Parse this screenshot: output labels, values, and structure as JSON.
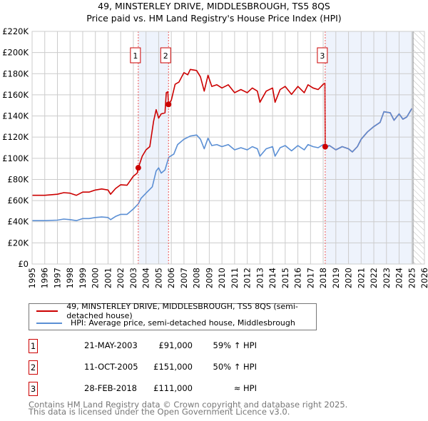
{
  "title": "49, MINSTERLEY DRIVE, MIDDLESBROUGH, TS5 8QS",
  "subtitle": "Price paid vs. HM Land Registry's House Price Index (HPI)",
  "chart_data": {
    "type": "line",
    "title": "49, MINSTERLEY DRIVE, MIDDLESBROUGH, TS5 8QS",
    "subtitle": "Price paid vs. HM Land Registry's House Price Index (HPI)",
    "xlim": [
      1995,
      2026
    ],
    "ylim": [
      0,
      220000
    ],
    "x_ticks": [
      "1995",
      "1996",
      "1997",
      "1998",
      "1999",
      "2000",
      "2001",
      "2002",
      "2003",
      "2004",
      "2005",
      "2006",
      "2007",
      "2008",
      "2009",
      "2010",
      "2011",
      "2012",
      "2013",
      "2014",
      "2015",
      "2016",
      "2017",
      "2018",
      "2019",
      "2020",
      "2021",
      "2022",
      "2023",
      "2024",
      "2025",
      "2026"
    ],
    "y_ticks": [
      {
        "v": 0,
        "l": "£0"
      },
      {
        "v": 20000,
        "l": "£20K"
      },
      {
        "v": 40000,
        "l": "£40K"
      },
      {
        "v": 60000,
        "l": "£60K"
      },
      {
        "v": 80000,
        "l": "£80K"
      },
      {
        "v": 100000,
        "l": "£100K"
      },
      {
        "v": 120000,
        "l": "£120K"
      },
      {
        "v": 140000,
        "l": "£140K"
      },
      {
        "v": 160000,
        "l": "£160K"
      },
      {
        "v": 180000,
        "l": "£180K"
      },
      {
        "v": 200000,
        "l": "£200K"
      },
      {
        "v": 220000,
        "l": "£220K"
      }
    ],
    "grid": true,
    "series": [
      {
        "name": "49, MINSTERLEY DRIVE, MIDDLESBROUGH, TS5 8QS (semi-detached house)",
        "color": "#cc0000",
        "points": [
          [
            1995,
            65000
          ],
          [
            1996,
            65000
          ],
          [
            1997,
            66000
          ],
          [
            1997.5,
            67500
          ],
          [
            1998,
            67000
          ],
          [
            1998.5,
            65000
          ],
          [
            1999,
            68000
          ],
          [
            1999.5,
            68000
          ],
          [
            2000,
            70000
          ],
          [
            2000.5,
            71000
          ],
          [
            2001,
            70000
          ],
          [
            2001.2,
            66000
          ],
          [
            2001.6,
            71500
          ],
          [
            2002,
            75000
          ],
          [
            2002.5,
            74500
          ],
          [
            2003,
            83000
          ],
          [
            2003.3,
            86000
          ],
          [
            2003.39,
            91000
          ],
          [
            2003.7,
            102000
          ],
          [
            2004,
            108000
          ],
          [
            2004.3,
            111000
          ],
          [
            2004.6,
            135000
          ],
          [
            2004.8,
            146000
          ],
          [
            2005,
            138000
          ],
          [
            2005.2,
            142000
          ],
          [
            2005.5,
            143000
          ],
          [
            2005.6,
            162000
          ],
          [
            2005.72,
            163000
          ],
          [
            2005.78,
            151000
          ],
          [
            2006,
            155000
          ],
          [
            2006.3,
            170000
          ],
          [
            2006.6,
            172000
          ],
          [
            2007,
            181000
          ],
          [
            2007.3,
            179000
          ],
          [
            2007.5,
            184000
          ],
          [
            2008,
            183000
          ],
          [
            2008.3,
            177000
          ],
          [
            2008.6,
            163500
          ],
          [
            2008.9,
            178500
          ],
          [
            2009.2,
            168000
          ],
          [
            2009.6,
            169500
          ],
          [
            2010,
            166500
          ],
          [
            2010.5,
            169500
          ],
          [
            2011,
            162000
          ],
          [
            2011.5,
            165000
          ],
          [
            2012,
            162000
          ],
          [
            2012.4,
            166500
          ],
          [
            2012.8,
            163500
          ],
          [
            2013,
            153000
          ],
          [
            2013.5,
            163500
          ],
          [
            2014,
            166500
          ],
          [
            2014.2,
            153000
          ],
          [
            2014.6,
            165000
          ],
          [
            2015,
            168000
          ],
          [
            2015.5,
            160500
          ],
          [
            2016,
            168000
          ],
          [
            2016.5,
            162000
          ],
          [
            2016.8,
            169500
          ],
          [
            2017.2,
            166500
          ],
          [
            2017.6,
            165000
          ],
          [
            2018,
            170000
          ],
          [
            2018.14,
            171000
          ],
          [
            2018.16,
            111000
          ],
          [
            2018.5,
            112000
          ],
          [
            2019,
            108000
          ],
          [
            2019.5,
            111000
          ],
          [
            2020,
            109000
          ],
          [
            2020.3,
            106000
          ],
          [
            2020.7,
            111000
          ],
          [
            2021,
            118000
          ],
          [
            2021.5,
            125000
          ],
          [
            2022,
            130000
          ],
          [
            2022.5,
            134000
          ],
          [
            2022.8,
            144000
          ],
          [
            2023.3,
            143000
          ],
          [
            2023.6,
            136000
          ],
          [
            2024,
            142000
          ],
          [
            2024.3,
            137000
          ],
          [
            2024.6,
            139000
          ],
          [
            2025,
            147000
          ]
        ]
      },
      {
        "name": "HPI: Average price, semi-detached house, Middlesbrough",
        "color": "#5b8fd4",
        "points": [
          [
            1995,
            41000
          ],
          [
            1996,
            41000
          ],
          [
            1997,
            41500
          ],
          [
            1997.5,
            42500
          ],
          [
            1998,
            42000
          ],
          [
            1998.5,
            41000
          ],
          [
            1999,
            43000
          ],
          [
            1999.5,
            43000
          ],
          [
            2000,
            44000
          ],
          [
            2000.5,
            44500
          ],
          [
            2001,
            44000
          ],
          [
            2001.2,
            42000
          ],
          [
            2001.6,
            45000
          ],
          [
            2002,
            47000
          ],
          [
            2002.5,
            47000
          ],
          [
            2003,
            52000
          ],
          [
            2003.4,
            57000
          ],
          [
            2003.6,
            62000
          ],
          [
            2004,
            67000
          ],
          [
            2004.5,
            73000
          ],
          [
            2004.8,
            88000
          ],
          [
            2005,
            91000
          ],
          [
            2005.2,
            86000
          ],
          [
            2005.5,
            89000
          ],
          [
            2005.8,
            101000
          ],
          [
            2006.2,
            104000
          ],
          [
            2006.5,
            113000
          ],
          [
            2007,
            118000
          ],
          [
            2007.5,
            121000
          ],
          [
            2008,
            122000
          ],
          [
            2008.3,
            118000
          ],
          [
            2008.6,
            109000
          ],
          [
            2008.9,
            119000
          ],
          [
            2009.2,
            112000
          ],
          [
            2009.6,
            113000
          ],
          [
            2010,
            111000
          ],
          [
            2010.5,
            113000
          ],
          [
            2011,
            108000
          ],
          [
            2011.5,
            110000
          ],
          [
            2012,
            108000
          ],
          [
            2012.4,
            111000
          ],
          [
            2012.8,
            109000
          ],
          [
            2013,
            102000
          ],
          [
            2013.5,
            109000
          ],
          [
            2014,
            111000
          ],
          [
            2014.2,
            102000
          ],
          [
            2014.6,
            110000
          ],
          [
            2015,
            112000
          ],
          [
            2015.5,
            107000
          ],
          [
            2016,
            112000
          ],
          [
            2016.5,
            108000
          ],
          [
            2016.8,
            113000
          ],
          [
            2017.2,
            111000
          ],
          [
            2017.6,
            110000
          ],
          [
            2018,
            113000
          ],
          [
            2018.16,
            110000
          ],
          [
            2018.5,
            112000
          ],
          [
            2019,
            108000
          ],
          [
            2019.5,
            111000
          ],
          [
            2020,
            109000
          ],
          [
            2020.3,
            106000
          ],
          [
            2020.7,
            111000
          ],
          [
            2021,
            118000
          ],
          [
            2021.5,
            125000
          ],
          [
            2022,
            130000
          ],
          [
            2022.5,
            134000
          ],
          [
            2022.8,
            144000
          ],
          [
            2023.3,
            143000
          ],
          [
            2023.6,
            136000
          ],
          [
            2024,
            142000
          ],
          [
            2024.3,
            137000
          ],
          [
            2024.6,
            139000
          ],
          [
            2025,
            147000
          ]
        ]
      }
    ],
    "sales": [
      {
        "n": "1",
        "x": 2003.39,
        "y": 91000
      },
      {
        "n": "2",
        "x": 2005.78,
        "y": 151000
      },
      {
        "n": "3",
        "x": 2018.16,
        "y": 111000
      }
    ],
    "shaded_ranges": [
      [
        2003.39,
        2005.78
      ],
      [
        2018.16,
        2025.1
      ]
    ],
    "forecast_hatch_from": 2025.1,
    "legend_placement": "below"
  },
  "legend": {
    "red": "49, MINSTERLEY DRIVE, MIDDLESBROUGH, TS5 8QS (semi-detached house)",
    "blue": "HPI: Average price, semi-detached house, Middlesbrough"
  },
  "sales_table": [
    {
      "n": "1",
      "date": "21-MAY-2003",
      "price": "£91,000",
      "hpi": "59% ↑ HPI"
    },
    {
      "n": "2",
      "date": "11-OCT-2005",
      "price": "£151,000",
      "hpi": "50% ↑ HPI"
    },
    {
      "n": "3",
      "date": "28-FEB-2018",
      "price": "£111,000",
      "hpi": "≈ HPI"
    }
  ],
  "footer": {
    "line1": "Contains HM Land Registry data © Crown copyright and database right 2025.",
    "line2": "This data is licensed under the Open Government Licence v3.0."
  }
}
